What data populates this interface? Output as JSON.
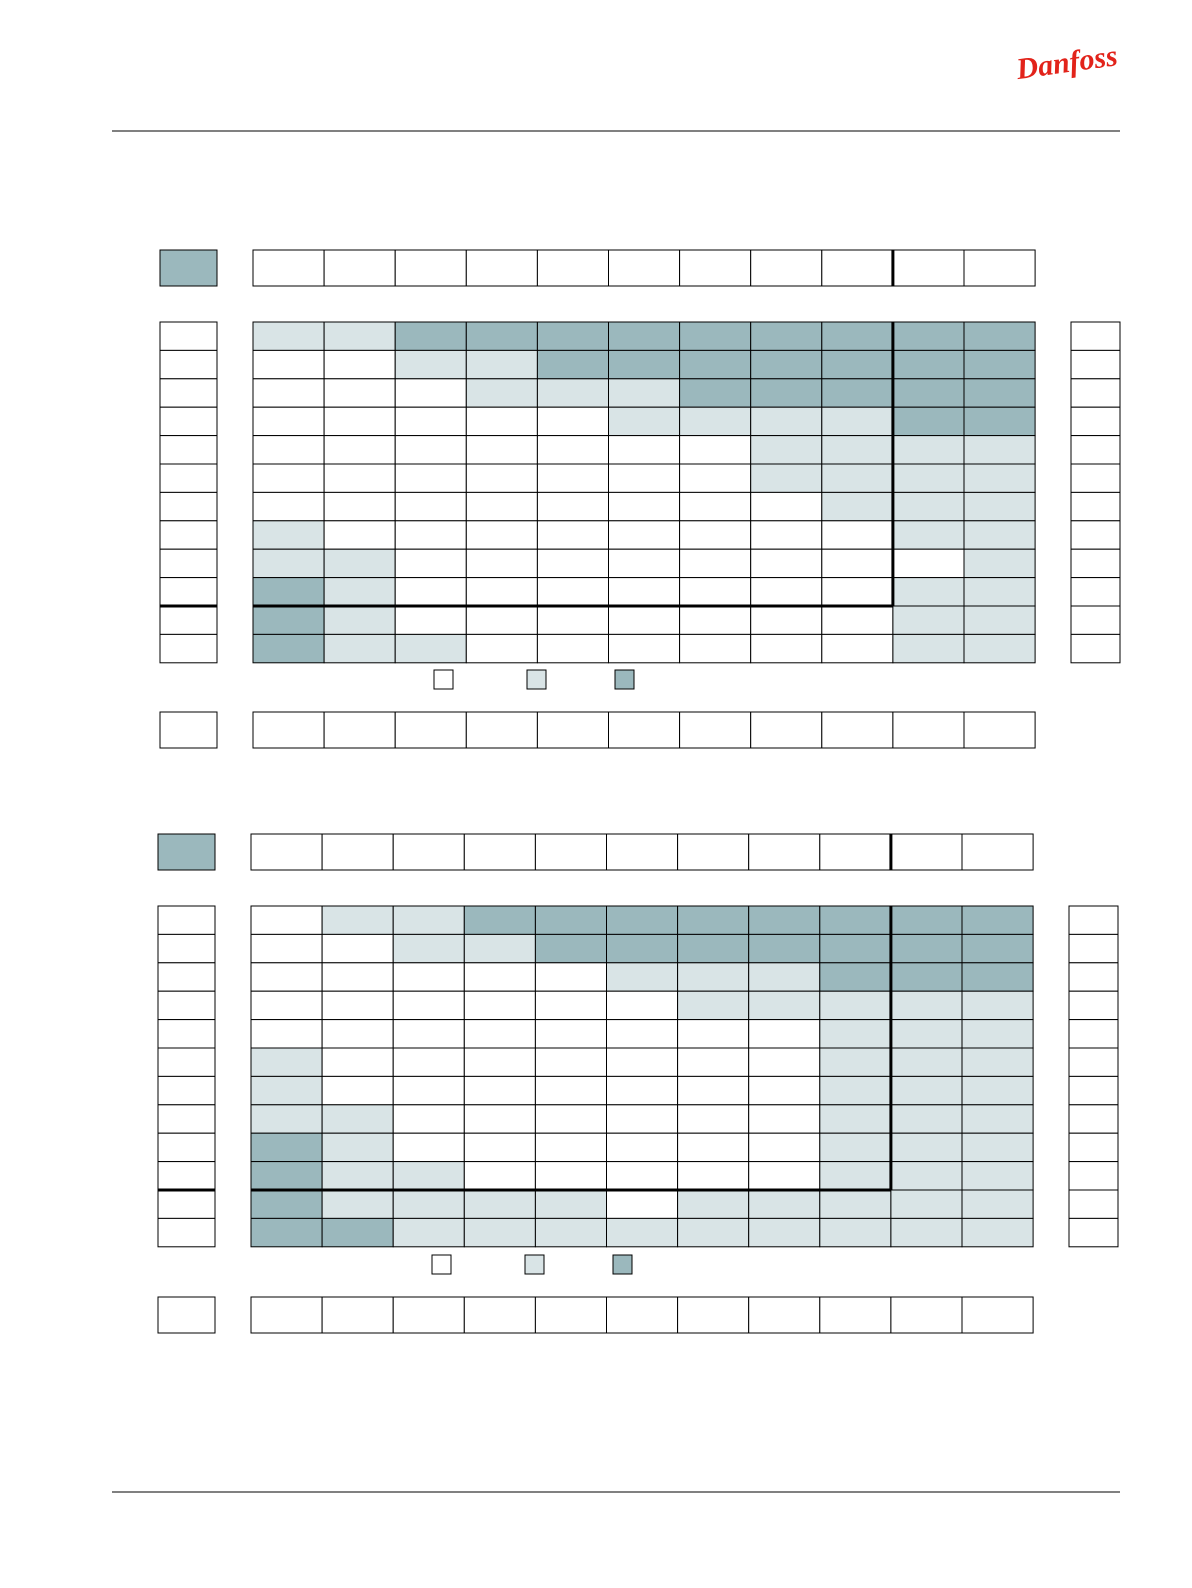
{
  "header": {
    "logo": "Danfoss"
  }
}
